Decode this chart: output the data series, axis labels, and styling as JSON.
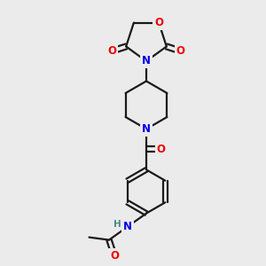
{
  "background_color": "#ebebeb",
  "bond_color": "#1a1a1a",
  "N_color": "#0000ee",
  "O_color": "#ee0000",
  "H_color": "#4a8a8a",
  "line_width": 1.6,
  "font_size_atoms": 8.5,
  "fig_width": 3.0,
  "fig_height": 3.0,
  "xlim": [
    0,
    10
  ],
  "ylim": [
    0,
    10
  ]
}
